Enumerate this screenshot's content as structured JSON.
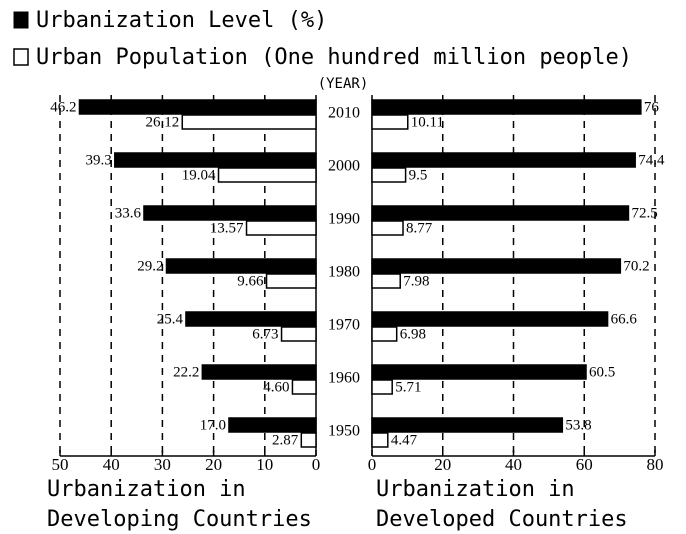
{
  "chart_data": {
    "type": "bar",
    "orientation": "horizontal",
    "category_label": "(YEAR)",
    "categories": [
      "2010",
      "2000",
      "1990",
      "1980",
      "1970",
      "1960",
      "1950"
    ],
    "legend": [
      {
        "name": "Urbanization Level (%)",
        "color": "#000000"
      },
      {
        "name": "Urban Population (One hundred million people)",
        "color": "#ffffff"
      }
    ],
    "grid": true,
    "panels": [
      {
        "title": [
          "Urbanization in",
          "Developing Countries"
        ],
        "reversed": true,
        "xlim": [
          0,
          50
        ],
        "xticks": [
          0,
          10,
          20,
          30,
          40,
          50
        ],
        "series": [
          {
            "values": [
              46.2,
              39.3,
              33.6,
              29.2,
              25.4,
              22.2,
              17.0
            ],
            "value_labels": [
              "46.2",
              "39.3",
              "33.6",
              "29.2",
              "25.4",
              "22.2",
              "17.0"
            ]
          },
          {
            "values": [
              26.12,
              19.04,
              13.57,
              9.66,
              6.73,
              4.6,
              2.87
            ],
            "value_labels": [
              "26.12",
              "19.04",
              "13.57",
              "9.66",
              "6.73",
              "4.60",
              "2.87"
            ]
          }
        ]
      },
      {
        "title": [
          "Urbanization in",
          "Developed Countries"
        ],
        "reversed": false,
        "xlim": [
          0,
          80
        ],
        "xticks": [
          0,
          20,
          40,
          60,
          80
        ],
        "series": [
          {
            "values": [
              76,
              74.4,
              72.5,
              70.2,
              66.6,
              60.5,
              53.8
            ]
          },
          {
            "values": [
              10.11,
              9.5,
              8.77,
              7.98,
              6.98,
              5.71,
              4.47
            ]
          }
        ]
      }
    ]
  }
}
